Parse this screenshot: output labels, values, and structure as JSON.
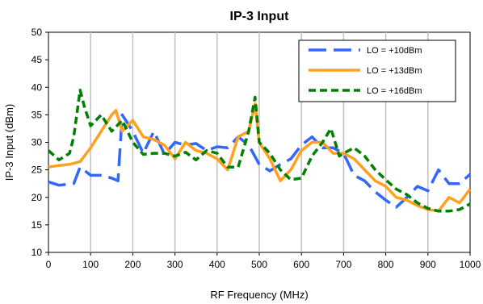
{
  "chart_data": {
    "type": "line",
    "title": "IP-3 Input",
    "xlabel": "RF Frequency (MHz)",
    "ylabel": "IP-3 Input (dBm)",
    "xlim": [
      0,
      1000
    ],
    "ylim": [
      10,
      50
    ],
    "xticks": [
      0,
      100,
      200,
      300,
      400,
      500,
      600,
      700,
      800,
      900,
      1000
    ],
    "yticks": [
      10,
      15,
      20,
      25,
      30,
      35,
      40,
      45,
      50
    ],
    "grid": "vertical",
    "legend_position": "top-right",
    "series": [
      {
        "name": "LO = +10dBm",
        "color": "#3366ff",
        "dash": "long-dash",
        "x": [
          0,
          25,
          60,
          75,
          100,
          125,
          150,
          165,
          175,
          200,
          225,
          250,
          275,
          300,
          325,
          350,
          375,
          400,
          425,
          450,
          475,
          500,
          525,
          550,
          575,
          600,
          625,
          650,
          675,
          700,
          725,
          750,
          775,
          800,
          825,
          850,
          875,
          900,
          925,
          950,
          975,
          1000
        ],
        "y": [
          22.8,
          22.2,
          22.5,
          25.5,
          24.0,
          24.0,
          23.5,
          23.0,
          35.0,
          32.0,
          28.0,
          32.0,
          27.8,
          30.0,
          29.5,
          29.8,
          28.5,
          29.2,
          29.0,
          31.0,
          29.5,
          26.0,
          24.8,
          26.0,
          27.0,
          29.5,
          31.0,
          29.0,
          29.0,
          28.0,
          24.0,
          23.0,
          21.0,
          19.5,
          18.2,
          20.0,
          22.0,
          21.2,
          25.0,
          22.5,
          22.5,
          24.2
        ]
      },
      {
        "name": "LO = +13dBm",
        "color": "#ffa020",
        "dash": "solid",
        "x": [
          0,
          25,
          50,
          75,
          100,
          125,
          150,
          160,
          175,
          200,
          225,
          250,
          275,
          300,
          325,
          350,
          375,
          400,
          425,
          450,
          475,
          490,
          500,
          525,
          550,
          575,
          600,
          625,
          650,
          675,
          700,
          725,
          750,
          775,
          800,
          825,
          850,
          875,
          900,
          925,
          950,
          975,
          1000
        ],
        "y": [
          25.5,
          25.8,
          26.0,
          26.5,
          29.0,
          32.0,
          35.0,
          35.8,
          32.0,
          34.0,
          31.0,
          30.5,
          29.5,
          27.0,
          30.0,
          28.5,
          28.0,
          27.0,
          25.0,
          31.0,
          32.0,
          37.0,
          30.0,
          27.0,
          23.0,
          25.0,
          28.5,
          30.0,
          30.0,
          28.0,
          28.0,
          27.0,
          25.0,
          23.0,
          22.0,
          20.0,
          19.5,
          18.5,
          17.8,
          17.5,
          20.0,
          19.0,
          21.5
        ]
      },
      {
        "name": "LO = +16dBm",
        "color": "#008000",
        "dash": "short-dash",
        "x": [
          0,
          25,
          50,
          60,
          75,
          85,
          100,
          125,
          150,
          175,
          200,
          225,
          250,
          275,
          300,
          325,
          350,
          375,
          400,
          425,
          450,
          475,
          490,
          500,
          525,
          550,
          575,
          600,
          625,
          650,
          670,
          690,
          700,
          725,
          750,
          775,
          800,
          825,
          850,
          875,
          900,
          925,
          950,
          975,
          1000
        ],
        "y": [
          28.5,
          26.8,
          28.0,
          31.0,
          39.5,
          36.5,
          33.0,
          35.0,
          32.0,
          34.0,
          30.0,
          27.8,
          28.0,
          28.0,
          27.5,
          28.2,
          26.8,
          28.5,
          28.0,
          25.5,
          25.5,
          32.0,
          38.2,
          30.0,
          28.0,
          25.0,
          23.2,
          23.5,
          27.5,
          30.0,
          32.5,
          27.5,
          28.0,
          29.0,
          27.5,
          25.0,
          23.2,
          21.5,
          20.5,
          19.0,
          18.0,
          17.5,
          17.5,
          17.8,
          18.8
        ]
      }
    ]
  }
}
